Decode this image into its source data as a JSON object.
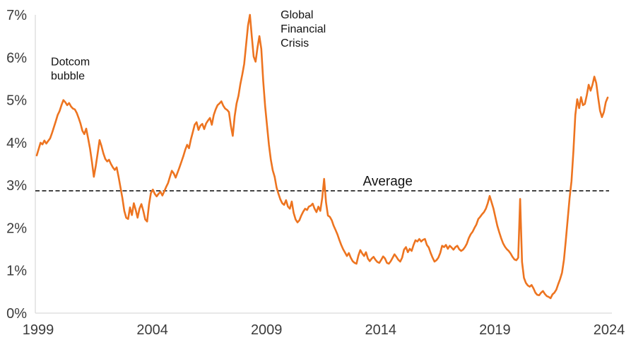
{
  "chart_data": {
    "type": "line",
    "title": "",
    "xlabel": "",
    "ylabel": "",
    "grid": false,
    "legend": false,
    "xlim": [
      1999,
      2024.2
    ],
    "ylim": [
      0,
      7
    ],
    "y_tick_labels": [
      "0%",
      "1%",
      "2%",
      "3%",
      "4%",
      "5%",
      "6%",
      "7%"
    ],
    "y_tick_values": [
      0,
      1,
      2,
      3,
      4,
      5,
      6,
      7
    ],
    "x_tick_labels": [
      "1999",
      "2004",
      "2009",
      "2014",
      "2019",
      "2024"
    ],
    "x_tick_values": [
      1999,
      2004,
      2009,
      2014,
      2019,
      2024
    ],
    "average_line": {
      "label": "Average",
      "value": 2.87,
      "style": "dashed",
      "color": "#1a1a1a"
    },
    "annotations": [
      {
        "id": "dotcom-bubble",
        "lines": [
          "Dotcom",
          "bubble"
        ],
        "x_year": 1999.62,
        "y_pct": 5.98,
        "baseline": "hanging"
      },
      {
        "id": "global-financial-crisis",
        "lines": [
          "Global",
          "Financial",
          "Crisis"
        ],
        "x_year": 2009.68,
        "y_pct": 7.08,
        "baseline": "hanging"
      },
      {
        "id": "average",
        "lines": [
          "Average"
        ],
        "x_year": 2013.28,
        "y_pct": 2.99,
        "baseline": "auto"
      }
    ],
    "series": [
      {
        "name": "yield-series",
        "color": "#ED7420",
        "x_start_year": 1999,
        "frequency": "monthly",
        "values": [
          3.7,
          3.85,
          4.0,
          3.96,
          4.05,
          3.98,
          4.04,
          4.1,
          4.22,
          4.36,
          4.5,
          4.65,
          4.74,
          4.88,
          5.0,
          4.95,
          4.88,
          4.93,
          4.85,
          4.8,
          4.78,
          4.7,
          4.58,
          4.45,
          4.28,
          4.2,
          4.33,
          4.1,
          3.86,
          3.55,
          3.2,
          3.45,
          3.75,
          4.06,
          3.92,
          3.75,
          3.62,
          3.56,
          3.6,
          3.5,
          3.42,
          3.36,
          3.42,
          3.2,
          2.95,
          2.7,
          2.4,
          2.24,
          2.21,
          2.48,
          2.3,
          2.58,
          2.42,
          2.24,
          2.45,
          2.56,
          2.4,
          2.2,
          2.15,
          2.55,
          2.82,
          2.9,
          2.8,
          2.74,
          2.8,
          2.85,
          2.76,
          2.86,
          2.96,
          3.05,
          3.2,
          3.34,
          3.28,
          3.18,
          3.3,
          3.42,
          3.55,
          3.68,
          3.83,
          3.95,
          3.87,
          4.08,
          4.25,
          4.42,
          4.48,
          4.3,
          4.4,
          4.44,
          4.32,
          4.45,
          4.52,
          4.58,
          4.42,
          4.65,
          4.78,
          4.88,
          4.92,
          4.97,
          4.87,
          4.8,
          4.77,
          4.72,
          4.4,
          4.16,
          4.62,
          4.92,
          5.1,
          5.38,
          5.6,
          5.85,
          6.3,
          6.75,
          7.0,
          6.5,
          6.02,
          5.9,
          6.23,
          6.5,
          6.2,
          5.45,
          4.86,
          4.4,
          3.95,
          3.6,
          3.35,
          3.2,
          2.95,
          2.8,
          2.67,
          2.58,
          2.54,
          2.65,
          2.5,
          2.45,
          2.62,
          2.35,
          2.2,
          2.13,
          2.18,
          2.29,
          2.38,
          2.45,
          2.42,
          2.5,
          2.52,
          2.57,
          2.45,
          2.37,
          2.5,
          2.4,
          2.7,
          3.15,
          2.6,
          2.29,
          2.26,
          2.18,
          2.05,
          1.95,
          1.85,
          1.72,
          1.6,
          1.5,
          1.42,
          1.34,
          1.41,
          1.3,
          1.22,
          1.18,
          1.16,
          1.35,
          1.48,
          1.4,
          1.34,
          1.43,
          1.28,
          1.22,
          1.28,
          1.32,
          1.25,
          1.2,
          1.18,
          1.25,
          1.33,
          1.28,
          1.18,
          1.16,
          1.22,
          1.3,
          1.38,
          1.32,
          1.25,
          1.21,
          1.3,
          1.49,
          1.55,
          1.43,
          1.51,
          1.46,
          1.6,
          1.71,
          1.68,
          1.74,
          1.68,
          1.72,
          1.74,
          1.6,
          1.54,
          1.41,
          1.3,
          1.21,
          1.24,
          1.3,
          1.41,
          1.58,
          1.55,
          1.6,
          1.51,
          1.58,
          1.54,
          1.49,
          1.55,
          1.58,
          1.5,
          1.46,
          1.49,
          1.55,
          1.63,
          1.76,
          1.85,
          1.91,
          2.0,
          2.08,
          2.21,
          2.26,
          2.32,
          2.37,
          2.45,
          2.58,
          2.75,
          2.6,
          2.45,
          2.25,
          2.05,
          1.9,
          1.76,
          1.64,
          1.56,
          1.5,
          1.46,
          1.4,
          1.32,
          1.26,
          1.24,
          1.3,
          2.68,
          1.2,
          0.83,
          0.71,
          0.65,
          0.62,
          0.66,
          0.58,
          0.48,
          0.43,
          0.42,
          0.48,
          0.52,
          0.45,
          0.4,
          0.38,
          0.35,
          0.44,
          0.48,
          0.55,
          0.68,
          0.8,
          0.95,
          1.25,
          1.7,
          2.2,
          2.7,
          3.1,
          3.8,
          4.65,
          5.02,
          4.81,
          5.07,
          4.88,
          4.91,
          5.11,
          5.36,
          5.22,
          5.36,
          5.55,
          5.4,
          5.06,
          4.75,
          4.6,
          4.72,
          4.95,
          5.06
        ]
      }
    ]
  },
  "colors": {
    "series": "#ED7420",
    "axis_line": "#d9d9d9",
    "tick_text": "#3b3b3b",
    "annotation_text": "#111111",
    "average_line": "#1a1a1a",
    "background": "#ffffff"
  }
}
